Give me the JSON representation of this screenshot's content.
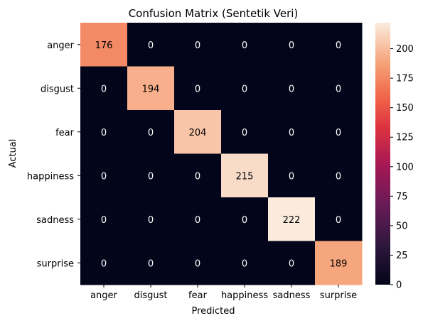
{
  "chart_data": {
    "type": "heatmap",
    "title": "Confusion Matrix (Sentetik Veri)",
    "xlabel": "Predicted",
    "ylabel": "Actual",
    "x_categories": [
      "anger",
      "disgust",
      "fear",
      "happiness",
      "sadness",
      "surprise"
    ],
    "y_categories": [
      "anger",
      "disgust",
      "fear",
      "happiness",
      "sadness",
      "surprise"
    ],
    "values": [
      [
        176,
        0,
        0,
        0,
        0,
        0
      ],
      [
        0,
        194,
        0,
        0,
        0,
        0
      ],
      [
        0,
        0,
        204,
        0,
        0,
        0
      ],
      [
        0,
        0,
        0,
        215,
        0,
        0
      ],
      [
        0,
        0,
        0,
        0,
        222,
        0
      ],
      [
        0,
        0,
        0,
        0,
        0,
        189
      ]
    ],
    "colorbar": {
      "vmin": 0,
      "vmax": 222,
      "ticks": [
        0,
        25,
        50,
        75,
        100,
        125,
        150,
        175,
        200
      ]
    },
    "colormap": "rocket",
    "annotation_color_dark_cells": "#ffffff",
    "annotation_color_light_cells": "#000000"
  }
}
